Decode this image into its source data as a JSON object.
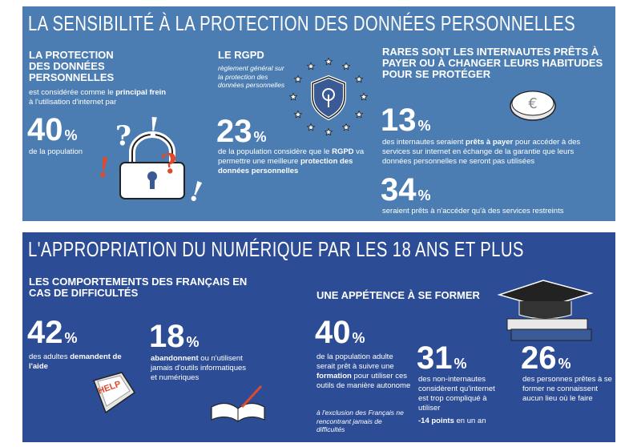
{
  "privacy": {
    "title": "LA SENSIBILITÉ À LA PROTECTION DES DONNÉES PERSONNELLES",
    "col1": {
      "heading": "LA PROTECTION DES DONNÉES PERSONNELLES",
      "text": [
        {
          "text": "est considérée comme le "
        },
        {
          "text": "principal frein",
          "bold": true
        },
        {
          "text": " à l'utilisation d'internet par"
        }
      ],
      "stat": {
        "value": "40",
        "unit": "%"
      },
      "desc": [
        {
          "text": "de la population"
        }
      ],
      "marks": [
        "?",
        "!",
        "!",
        "?",
        "!"
      ]
    },
    "col2": {
      "heading": "LE RGPD",
      "subtitle": "règlement général sur la protection des données personnelles",
      "stat": {
        "value": "23",
        "unit": "%"
      },
      "desc": [
        {
          "text": "de la population considère que le "
        },
        {
          "text": "RGPD",
          "bold": true
        },
        {
          "text": " va permettre une meilleure "
        },
        {
          "text": "protection des données personnelles",
          "bold": true
        }
      ]
    },
    "col3": {
      "heading": "RARES SONT LES INTERNAUTES PRÊTS À PAYER OU À CHANGER LEURS HABITUDES POUR SE PROTÉGER",
      "stat1": {
        "value": "13",
        "unit": "%"
      },
      "desc1": [
        {
          "text": "des internautes seraient "
        },
        {
          "text": "prêts à payer",
          "bold": true
        },
        {
          "text": " pour accéder à des services sur internet en échange de la garantie que leurs données personnelles ne seront pas utilisées"
        }
      ],
      "stat2": {
        "value": "34",
        "unit": "%"
      },
      "desc2": [
        {
          "text": "seraient prêts à n'accéder qu'à des services restreints"
        }
      ]
    }
  },
  "digital": {
    "title": "L'APPROPRIATION DU NUMÉRIQUE PAR LES 18 ANS ET PLUS",
    "sub1": {
      "heading": "LES COMPORTEMENTS DES FRANÇAIS EN CAS DE DIFFICULTÉS",
      "stat1": {
        "value": "42",
        "unit": "%"
      },
      "desc1": [
        {
          "text": "des adultes "
        },
        {
          "text": "demandent de l'aide",
          "bold": true
        }
      ],
      "help": "HELP",
      "stat2": {
        "value": "18",
        "unit": "%"
      },
      "desc2": [
        {
          "text": "abandonnent",
          "bold": true
        },
        {
          "text": " ou n'utilisent jamais d'outils informatiques et numériques"
        }
      ]
    },
    "sub2": {
      "heading": "UNE APPÉTENCE À SE FORMER",
      "stat1": {
        "value": "40",
        "unit": "%"
      },
      "desc1": [
        {
          "text": "de la population adulte serait prêt à suivre une "
        },
        {
          "text": "formation",
          "bold": true
        },
        {
          "text": " pour utiliser ces outils de manière autonome"
        }
      ],
      "note1": "à l'exclusion des Français ne rencontrant jamais de difficultés",
      "stat2": {
        "value": "31",
        "unit": "%"
      },
      "desc2": [
        {
          "text": "des non-internautes considèrent qu'internet est trop compliqué à utiliser"
        }
      ],
      "desc2b": [
        {
          "text": "-14 points",
          "bold": true
        },
        {
          "text": " en un an"
        }
      ],
      "stat3": {
        "value": "26",
        "unit": "%"
      },
      "desc3": [
        {
          "text": "des personnes prêtes à se former ne connaissent aucun lieu où le faire"
        }
      ]
    }
  }
}
